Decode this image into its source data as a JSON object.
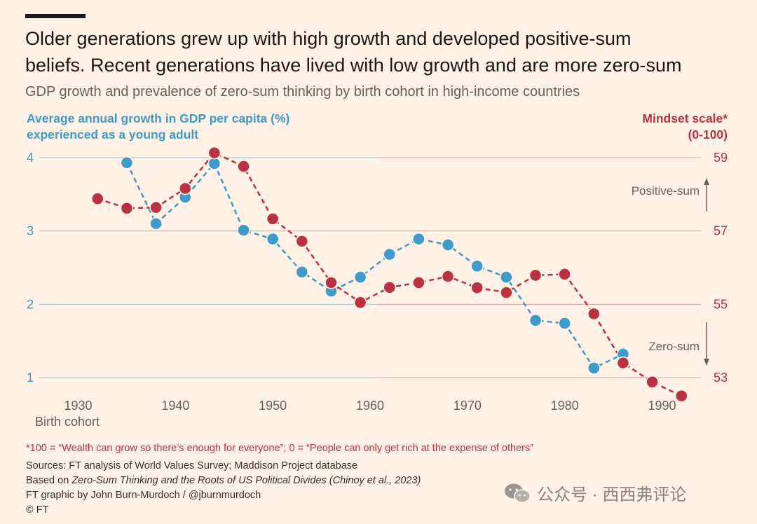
{
  "title_line1": "Older generations grew up with high growth and developed positive-sum",
  "title_line2": "beliefs. Recent generations have lived with low growth and are more zero-sum",
  "subtitle": "GDP growth and prevalence of zero-sum thinking by birth cohort in high-income countries",
  "left_axis_title_1": "Average annual growth in GDP per capita (%)",
  "left_axis_title_2": "experienced as a young adult",
  "right_axis_title_1": "Mindset scale*",
  "right_axis_title_2": "(0-100)",
  "annotation_positive": "Positive-sum",
  "annotation_zero": "Zero-sum",
  "footnote": "*100 = “Wealth can grow so there’s enough for everyone”; 0 = “People can only get rich at the expense of others”",
  "sources_1": "Sources: FT analysis of World Values Survey; Maddison Project database",
  "sources_2_prefix": "Based on ",
  "sources_2_italic": "Zero-Sum Thinking and the Roots of US Political Divides (Chinoy et al., 2023)",
  "credit": "FT graphic by John Burn-Murdoch / @jburnmurdoch",
  "copyright": "© FT",
  "watermark_text": "公众号 · 西西弗评论",
  "colors": {
    "growth": "#3d9ac9",
    "mindset": "#b8323f",
    "background": "#fff1e5"
  },
  "chart_data": {
    "type": "line",
    "xlabel": "Birth cohort",
    "x_ticks": [
      1930,
      1940,
      1950,
      1960,
      1970,
      1980,
      1990
    ],
    "xlim": [
      1926,
      1994
    ],
    "y_left": {
      "label": "Average annual growth in GDP per capita (%) experienced as a young adult",
      "ticks": [
        1,
        2,
        3,
        4
      ],
      "lim": [
        1,
        4
      ]
    },
    "y_right": {
      "label": "Mindset scale* (0-100)",
      "ticks": [
        53,
        55,
        57,
        59
      ],
      "lim": [
        53,
        59
      ]
    },
    "series": [
      {
        "name": "Average annual growth in GDP per capita (%)",
        "axis": "left",
        "x": [
          1935,
          1938,
          1941,
          1944,
          1947,
          1950,
          1953,
          1956,
          1959,
          1962,
          1965,
          1968,
          1971,
          1974,
          1977,
          1980,
          1983,
          1986
        ],
        "y": [
          3.93,
          3.1,
          3.46,
          3.92,
          3.01,
          2.89,
          2.44,
          2.18,
          2.37,
          2.68,
          2.89,
          2.81,
          2.52,
          2.37,
          1.78,
          1.74,
          1.13,
          1.32
        ]
      },
      {
        "name": "Mindset scale* (0-100)",
        "axis": "right",
        "x": [
          1932,
          1935,
          1938,
          1941,
          1944,
          1947,
          1950,
          1953,
          1956,
          1959,
          1962,
          1965,
          1968,
          1971,
          1974,
          1977,
          1980,
          1983,
          1986,
          1989,
          1992
        ],
        "y": [
          57.88,
          57.62,
          57.64,
          58.16,
          59.13,
          58.76,
          57.33,
          56.72,
          55.59,
          55.05,
          55.46,
          55.59,
          55.76,
          55.45,
          55.32,
          55.79,
          55.82,
          54.74,
          53.4,
          52.88,
          52.5
        ]
      }
    ]
  }
}
